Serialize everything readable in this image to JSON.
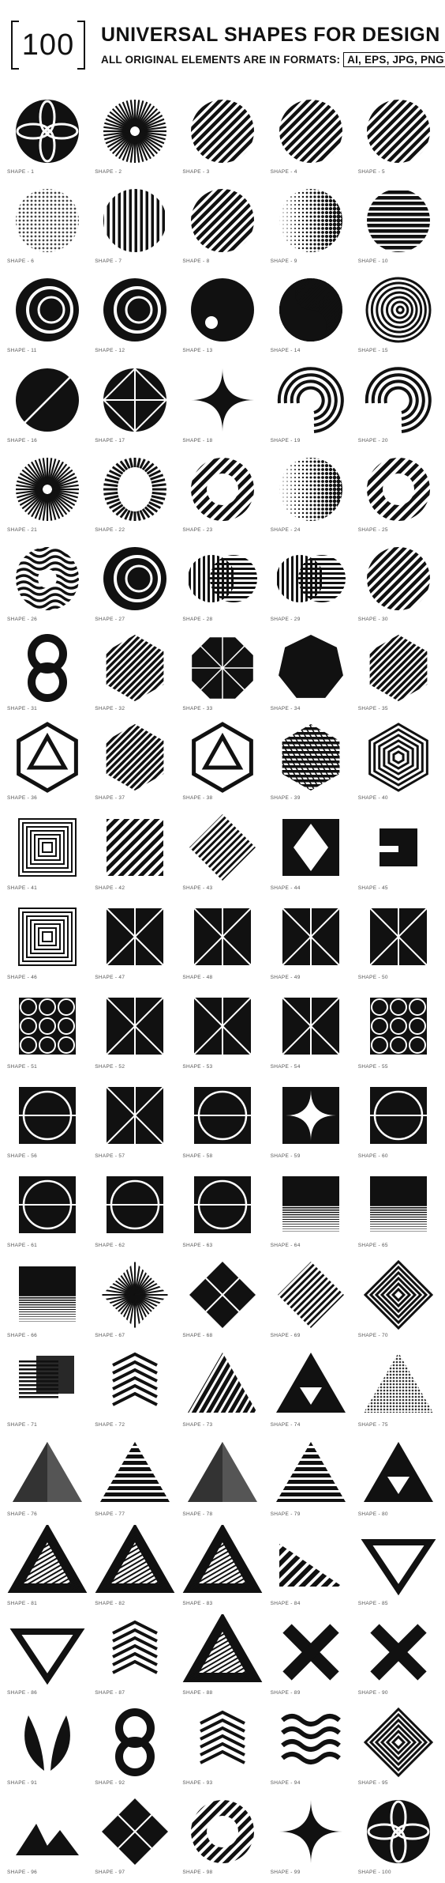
{
  "header": {
    "count": "100",
    "title": "UNIVERSAL SHAPES FOR DESIGN",
    "subtitle": "ALL ORIGINAL ELEMENTS ARE IN FORMATS:",
    "formats": "AI, EPS, JPG, PNG"
  },
  "shapes": [
    {
      "label": "SHAPE - 1",
      "kind": "petals"
    },
    {
      "label": "SHAPE - 2",
      "kind": "sunburst"
    },
    {
      "label": "SHAPE - 3",
      "kind": "circle-diag"
    },
    {
      "label": "SHAPE - 4",
      "kind": "circle-diag"
    },
    {
      "label": "SHAPE - 5",
      "kind": "circle-diag"
    },
    {
      "label": "SHAPE - 6",
      "kind": "circle-dots"
    },
    {
      "label": "SHAPE - 7",
      "kind": "circle-vert"
    },
    {
      "label": "SHAPE - 8",
      "kind": "circle-diag"
    },
    {
      "label": "SHAPE - 9",
      "kind": "circle-halftone"
    },
    {
      "label": "SHAPE - 10",
      "kind": "circle-horiz"
    },
    {
      "label": "SHAPE - 11",
      "kind": "circle-rings"
    },
    {
      "label": "SHAPE - 12",
      "kind": "circle-rings"
    },
    {
      "label": "SHAPE - 13",
      "kind": "circle-solid"
    },
    {
      "label": "SHAPE - 14",
      "kind": "yin"
    },
    {
      "label": "SHAPE - 15",
      "kind": "spiral"
    },
    {
      "label": "SHAPE - 16",
      "kind": "circle-split"
    },
    {
      "label": "SHAPE - 17",
      "kind": "circle-cross"
    },
    {
      "label": "SHAPE - 18",
      "kind": "star4"
    },
    {
      "label": "SHAPE - 19",
      "kind": "arcs"
    },
    {
      "label": "SHAPE - 20",
      "kind": "arcs"
    },
    {
      "label": "SHAPE - 21",
      "kind": "sunburst"
    },
    {
      "label": "SHAPE - 22",
      "kind": "ring-burst"
    },
    {
      "label": "SHAPE - 23",
      "kind": "ring-diag"
    },
    {
      "label": "SHAPE - 24",
      "kind": "circle-halftone"
    },
    {
      "label": "SHAPE - 25",
      "kind": "ring-diag"
    },
    {
      "label": "SHAPE - 26",
      "kind": "ring-wave"
    },
    {
      "label": "SHAPE - 27",
      "kind": "circle-rings"
    },
    {
      "label": "SHAPE - 28",
      "kind": "double-circle"
    },
    {
      "label": "SHAPE - 29",
      "kind": "double-circle"
    },
    {
      "label": "SHAPE - 30",
      "kind": "circle-diag"
    },
    {
      "label": "SHAPE - 31",
      "kind": "eight"
    },
    {
      "label": "SHAPE - 32",
      "kind": "hex-diag"
    },
    {
      "label": "SHAPE - 33",
      "kind": "octagon"
    },
    {
      "label": "SHAPE - 34",
      "kind": "heptagon"
    },
    {
      "label": "SHAPE - 35",
      "kind": "hex-diag"
    },
    {
      "label": "SHAPE - 36",
      "kind": "hex-tri"
    },
    {
      "label": "SHAPE - 37",
      "kind": "hex-diag"
    },
    {
      "label": "SHAPE - 38",
      "kind": "hex-tri"
    },
    {
      "label": "SHAPE - 39",
      "kind": "hex-cube"
    },
    {
      "label": "SHAPE - 40",
      "kind": "hex-nest"
    },
    {
      "label": "SHAPE - 41",
      "kind": "sq-nest"
    },
    {
      "label": "SHAPE - 42",
      "kind": "sq-diag"
    },
    {
      "label": "SHAPE - 43",
      "kind": "diamond-diag"
    },
    {
      "label": "SHAPE - 44",
      "kind": "sq-diamond"
    },
    {
      "label": "SHAPE - 45",
      "kind": "sq-small"
    },
    {
      "label": "SHAPE - 46",
      "kind": "sq-nest"
    },
    {
      "label": "SHAPE - 47",
      "kind": "sq-x"
    },
    {
      "label": "SHAPE - 48",
      "kind": "sq-x"
    },
    {
      "label": "SHAPE - 49",
      "kind": "sq-x"
    },
    {
      "label": "SHAPE - 50",
      "kind": "sq-x"
    },
    {
      "label": "SHAPE - 51",
      "kind": "sq-pattern"
    },
    {
      "label": "SHAPE - 52",
      "kind": "sq-x"
    },
    {
      "label": "SHAPE - 53",
      "kind": "sq-x"
    },
    {
      "label": "SHAPE - 54",
      "kind": "sq-x"
    },
    {
      "label": "SHAPE - 55",
      "kind": "sq-pattern"
    },
    {
      "label": "SHAPE - 56",
      "kind": "sq-circle"
    },
    {
      "label": "SHAPE - 57",
      "kind": "sq-x"
    },
    {
      "label": "SHAPE - 58",
      "kind": "sq-circle"
    },
    {
      "label": "SHAPE - 59",
      "kind": "sq-star"
    },
    {
      "label": "SHAPE - 60",
      "kind": "sq-circle"
    },
    {
      "label": "SHAPE - 61",
      "kind": "sq-circle"
    },
    {
      "label": "SHAPE - 62",
      "kind": "sq-circle"
    },
    {
      "label": "SHAPE - 63",
      "kind": "sq-circle"
    },
    {
      "label": "SHAPE - 64",
      "kind": "sq-gradient"
    },
    {
      "label": "SHAPE - 65",
      "kind": "sq-gradient"
    },
    {
      "label": "SHAPE - 66",
      "kind": "sq-gradient"
    },
    {
      "label": "SHAPE - 67",
      "kind": "diamond-burst"
    },
    {
      "label": "SHAPE - 68",
      "kind": "diamond-grid"
    },
    {
      "label": "SHAPE - 69",
      "kind": "diamond-diag"
    },
    {
      "label": "SHAPE - 70",
      "kind": "diamond-nest"
    },
    {
      "label": "SHAPE - 71",
      "kind": "sq-overlap"
    },
    {
      "label": "SHAPE - 72",
      "kind": "diamond-chev"
    },
    {
      "label": "SHAPE - 73",
      "kind": "tri-diag"
    },
    {
      "label": "SHAPE - 74",
      "kind": "tri-hole"
    },
    {
      "label": "SHAPE - 75",
      "kind": "tri-dots"
    },
    {
      "label": "SHAPE - 76",
      "kind": "tri-split"
    },
    {
      "label": "SHAPE - 77",
      "kind": "tri-stripes"
    },
    {
      "label": "SHAPE - 78",
      "kind": "tri-split"
    },
    {
      "label": "SHAPE - 79",
      "kind": "tri-stripes"
    },
    {
      "label": "SHAPE - 80",
      "kind": "tri-hole"
    },
    {
      "label": "SHAPE - 81",
      "kind": "impossible"
    },
    {
      "label": "SHAPE - 82",
      "kind": "impossible"
    },
    {
      "label": "SHAPE - 83",
      "kind": "impossible"
    },
    {
      "label": "SHAPE - 84",
      "kind": "tri-right"
    },
    {
      "label": "SHAPE - 85",
      "kind": "tri-down"
    },
    {
      "label": "SHAPE - 86",
      "kind": "tri-down"
    },
    {
      "label": "SHAPE - 87",
      "kind": "diamond-chev"
    },
    {
      "label": "SHAPE - 88",
      "kind": "impossible"
    },
    {
      "label": "SHAPE - 89",
      "kind": "x-shape"
    },
    {
      "label": "SHAPE - 90",
      "kind": "x-shape"
    },
    {
      "label": "SHAPE - 91",
      "kind": "wings"
    },
    {
      "label": "SHAPE - 92",
      "kind": "eight"
    },
    {
      "label": "SHAPE - 93",
      "kind": "diamond-chev"
    },
    {
      "label": "SHAPE - 94",
      "kind": "wave-lines"
    },
    {
      "label": "SHAPE - 95",
      "kind": "diamond-nest"
    },
    {
      "label": "SHAPE - 96",
      "kind": "mountains"
    },
    {
      "label": "SHAPE - 97",
      "kind": "diamond-grid"
    },
    {
      "label": "SHAPE - 98",
      "kind": "ring-diag"
    },
    {
      "label": "SHAPE - 99",
      "kind": "star4"
    },
    {
      "label": "SHAPE - 100",
      "kind": "petals"
    }
  ]
}
